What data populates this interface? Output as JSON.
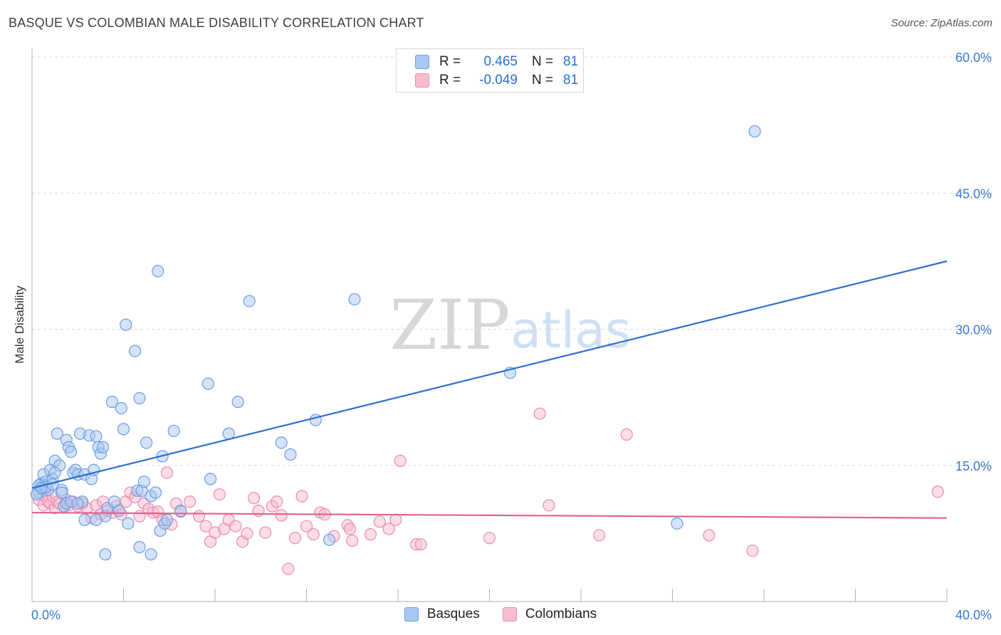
{
  "header": {
    "title": "BASQUE VS COLOMBIAN MALE DISABILITY CORRELATION CHART",
    "source": "Source: ZipAtlas.com"
  },
  "watermark": {
    "part1": "ZIP",
    "part2": "atlas"
  },
  "legend_top": {
    "rows": [
      {
        "r_label": "R =",
        "r_value": "0.465",
        "n_label": "N =",
        "n_value": "81"
      },
      {
        "r_label": "R =",
        "r_value": "-0.049",
        "n_label": "N =",
        "n_value": "81"
      }
    ]
  },
  "colors": {
    "basque_fill": "#a9c8f0",
    "basque_stroke": "#6b9ee0",
    "basque_line": "#2c6fcf",
    "colombian_fill": "#f8bcd0",
    "colombian_stroke": "#ea8cab",
    "colombian_line": "#e5608c",
    "tick_label": "#3a78d0",
    "grid": "#d9d9d9",
    "axis": "#b0b0b0"
  },
  "chart_data": {
    "type": "scatter",
    "title": "BASQUE VS COLOMBIAN MALE DISABILITY CORRELATION CHART",
    "xlabel": "",
    "ylabel": "Male Disability",
    "xlim": [
      0,
      40
    ],
    "ylim": [
      0,
      60
    ],
    "x_tick_labels": [
      "0.0%",
      "40.0%"
    ],
    "y_ticks": [
      15,
      30,
      45,
      60
    ],
    "y_tick_labels": [
      "15.0%",
      "30.0%",
      "45.0%",
      "60.0%"
    ],
    "grid": true,
    "series": [
      {
        "name": "Basques",
        "r": 0.465,
        "n": 81,
        "trend": {
          "x": [
            0,
            40
          ],
          "y": [
            12.5,
            37.5
          ]
        },
        "points": [
          [
            0.3,
            12.0
          ],
          [
            0.4,
            13.0
          ],
          [
            0.5,
            12.5
          ],
          [
            0.5,
            14.0
          ],
          [
            0.6,
            13.2
          ],
          [
            0.7,
            12.3
          ],
          [
            0.8,
            14.5
          ],
          [
            0.9,
            13.5
          ],
          [
            1.0,
            15.5
          ],
          [
            1.1,
            18.5
          ],
          [
            1.2,
            15.0
          ],
          [
            1.3,
            12.3
          ],
          [
            1.4,
            10.5
          ],
          [
            1.5,
            17.8
          ],
          [
            1.6,
            17.0
          ],
          [
            1.7,
            16.5
          ],
          [
            1.8,
            14.2
          ],
          [
            1.9,
            14.5
          ],
          [
            2.0,
            14.0
          ],
          [
            2.1,
            18.5
          ],
          [
            2.2,
            11.0
          ],
          [
            2.3,
            14.0
          ],
          [
            2.5,
            18.3
          ],
          [
            2.6,
            13.5
          ],
          [
            2.7,
            14.5
          ],
          [
            2.8,
            18.2
          ],
          [
            2.9,
            17.0
          ],
          [
            3.0,
            16.3
          ],
          [
            3.1,
            17.0
          ],
          [
            3.2,
            9.4
          ],
          [
            3.3,
            10.3
          ],
          [
            3.5,
            22.0
          ],
          [
            3.6,
            11.0
          ],
          [
            3.8,
            10.0
          ],
          [
            3.9,
            21.3
          ],
          [
            4.0,
            19.0
          ],
          [
            4.1,
            30.5
          ],
          [
            4.2,
            8.6
          ],
          [
            4.5,
            27.6
          ],
          [
            4.6,
            12.2
          ],
          [
            4.7,
            22.4
          ],
          [
            4.8,
            12.2
          ],
          [
            4.9,
            13.2
          ],
          [
            5.0,
            17.5
          ],
          [
            5.2,
            11.6
          ],
          [
            5.4,
            12.0
          ],
          [
            5.5,
            36.4
          ],
          [
            5.6,
            7.8
          ],
          [
            5.7,
            16.0
          ],
          [
            5.8,
            8.6
          ],
          [
            5.9,
            9.0
          ],
          [
            6.2,
            18.8
          ],
          [
            6.5,
            10.0
          ],
          [
            7.7,
            24.0
          ],
          [
            7.8,
            13.5
          ],
          [
            8.6,
            18.5
          ],
          [
            9.0,
            22.0
          ],
          [
            9.5,
            33.1
          ],
          [
            10.9,
            17.5
          ],
          [
            11.3,
            16.2
          ],
          [
            12.4,
            20.0
          ],
          [
            13.0,
            6.8
          ],
          [
            14.1,
            33.3
          ],
          [
            20.9,
            25.2
          ],
          [
            28.2,
            8.6
          ],
          [
            31.6,
            51.8
          ],
          [
            0.2,
            11.8
          ],
          [
            0.3,
            12.8
          ],
          [
            0.6,
            12.6
          ],
          [
            0.9,
            12.9
          ],
          [
            1.3,
            12.0
          ],
          [
            1.5,
            10.8
          ],
          [
            2.3,
            9.0
          ],
          [
            2.8,
            9.0
          ],
          [
            3.2,
            5.2
          ],
          [
            4.7,
            6.0
          ],
          [
            5.2,
            5.2
          ],
          [
            1.0,
            14.2
          ],
          [
            1.7,
            11.0
          ],
          [
            2.0,
            10.8
          ],
          [
            0.4,
            12.5
          ]
        ]
      },
      {
        "name": "Colombians",
        "r": -0.049,
        "n": 81,
        "trend": {
          "x": [
            0,
            40
          ],
          "y": [
            9.8,
            9.2
          ]
        },
        "points": [
          [
            0.3,
            11.2
          ],
          [
            0.4,
            12.5
          ],
          [
            0.5,
            10.6
          ],
          [
            0.6,
            11.6
          ],
          [
            0.7,
            11.0
          ],
          [
            0.8,
            10.8
          ],
          [
            0.9,
            11.6
          ],
          [
            1.0,
            10.3
          ],
          [
            1.1,
            11.0
          ],
          [
            1.2,
            10.8
          ],
          [
            1.4,
            10.5
          ],
          [
            1.5,
            11.2
          ],
          [
            1.6,
            10.6
          ],
          [
            1.8,
            11.0
          ],
          [
            2.0,
            10.5
          ],
          [
            2.2,
            10.8
          ],
          [
            2.4,
            10.3
          ],
          [
            2.6,
            9.2
          ],
          [
            2.8,
            10.6
          ],
          [
            3.0,
            9.6
          ],
          [
            3.1,
            11.0
          ],
          [
            3.3,
            10.0
          ],
          [
            3.5,
            9.8
          ],
          [
            3.7,
            10.5
          ],
          [
            3.9,
            9.6
          ],
          [
            4.1,
            11.0
          ],
          [
            4.3,
            12.0
          ],
          [
            4.5,
            11.5
          ],
          [
            4.7,
            9.4
          ],
          [
            4.9,
            10.8
          ],
          [
            5.1,
            10.2
          ],
          [
            5.3,
            9.8
          ],
          [
            5.5,
            9.9
          ],
          [
            5.7,
            9.0
          ],
          [
            5.9,
            14.2
          ],
          [
            6.1,
            8.5
          ],
          [
            6.3,
            10.8
          ],
          [
            6.5,
            9.9
          ],
          [
            6.9,
            11.0
          ],
          [
            7.3,
            9.4
          ],
          [
            7.6,
            8.3
          ],
          [
            7.8,
            6.6
          ],
          [
            8.0,
            7.6
          ],
          [
            8.2,
            11.8
          ],
          [
            8.4,
            8.0
          ],
          [
            8.6,
            9.0
          ],
          [
            8.9,
            8.3
          ],
          [
            9.2,
            6.6
          ],
          [
            9.4,
            7.5
          ],
          [
            9.7,
            11.4
          ],
          [
            9.9,
            10.0
          ],
          [
            10.2,
            7.6
          ],
          [
            10.5,
            10.5
          ],
          [
            10.7,
            11.0
          ],
          [
            10.9,
            9.5
          ],
          [
            11.2,
            3.6
          ],
          [
            11.5,
            7.0
          ],
          [
            11.8,
            11.6
          ],
          [
            12.0,
            8.3
          ],
          [
            12.3,
            7.4
          ],
          [
            12.6,
            9.8
          ],
          [
            12.8,
            9.6
          ],
          [
            13.2,
            7.2
          ],
          [
            13.8,
            8.4
          ],
          [
            14.0,
            6.7
          ],
          [
            14.8,
            7.4
          ],
          [
            15.2,
            8.8
          ],
          [
            15.6,
            8.0
          ],
          [
            15.9,
            9.0
          ],
          [
            16.1,
            15.5
          ],
          [
            16.8,
            6.3
          ],
          [
            17.0,
            6.3
          ],
          [
            20.0,
            7.0
          ],
          [
            22.2,
            20.7
          ],
          [
            22.6,
            10.6
          ],
          [
            24.8,
            7.3
          ],
          [
            26.0,
            18.4
          ],
          [
            29.6,
            7.3
          ],
          [
            31.5,
            5.6
          ],
          [
            39.6,
            12.1
          ],
          [
            13.9,
            8.0
          ]
        ]
      }
    ]
  },
  "legend_bottom": {
    "items": [
      "Basques",
      "Colombians"
    ]
  }
}
